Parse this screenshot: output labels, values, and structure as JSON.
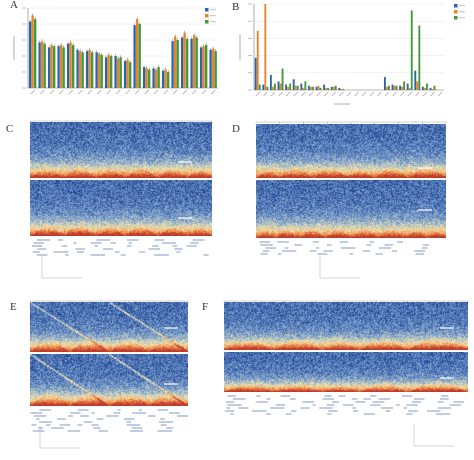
{
  "panels": {
    "A": {
      "label": "A"
    },
    "B": {
      "label": "B"
    },
    "C": {
      "label": "C"
    },
    "D": {
      "label": "D"
    },
    "E": {
      "label": "E"
    },
    "F": {
      "label": "F"
    }
  },
  "colors": {
    "series1": "#2e63a8",
    "series2": "#e8842a",
    "series3": "#3f9a3a",
    "hic_high": "#c0392b",
    "hic_mid": "#f3e7b0",
    "hic_low": "#1d3f8f"
  },
  "chart_data": [
    {
      "panel": "A",
      "type": "bar",
      "series": [
        {
          "name": "",
          "color": "#2e63a8",
          "values": [
            5.4,
            3.7,
            3.3,
            3.4,
            3.6,
            3.1,
            3.0,
            2.9,
            2.5,
            2.6,
            2.2,
            5.1,
            1.7,
            1.6,
            1.4,
            3.8,
            4.1,
            4.0,
            3.3,
            3.1
          ]
        },
        {
          "name": "",
          "color": "#e8842a",
          "values": [
            5.9,
            3.8,
            3.5,
            3.5,
            3.7,
            3.0,
            3.1,
            2.8,
            2.7,
            2.4,
            2.3,
            5.6,
            1.6,
            1.5,
            1.5,
            4.2,
            4.5,
            4.3,
            3.4,
            3.2
          ]
        },
        {
          "name": "",
          "color": "#3f9a3a",
          "values": [
            5.6,
            3.6,
            3.4,
            3.3,
            3.5,
            2.9,
            2.9,
            2.7,
            2.6,
            2.5,
            2.1,
            5.2,
            1.5,
            1.7,
            1.3,
            3.9,
            4.0,
            4.1,
            3.5,
            3.0
          ]
        }
      ],
      "ylim": [
        0,
        6.5
      ],
      "legend": "top-right"
    },
    {
      "panel": "B",
      "type": "bar",
      "series": [
        {
          "name": "",
          "color": "#2e63a8",
          "values": [
            30,
            5,
            14,
            8,
            5,
            10,
            6,
            4,
            3,
            5,
            3,
            2,
            0,
            0,
            0,
            0,
            0,
            12,
            5,
            4,
            6,
            18,
            3,
            2,
            0
          ]
        },
        {
          "name": "",
          "color": "#e8842a",
          "values": [
            55,
            80,
            3,
            6,
            3,
            4,
            2,
            3,
            4,
            2,
            3,
            1,
            0,
            0,
            0,
            0,
            0,
            3,
            4,
            3,
            2,
            8,
            2,
            1,
            0
          ]
        },
        {
          "name": "",
          "color": "#3f9a3a",
          "values": [
            5,
            3,
            6,
            20,
            6,
            4,
            8,
            3,
            2,
            2,
            4,
            1,
            0,
            0,
            0,
            0,
            0,
            4,
            4,
            8,
            74,
            60,
            6,
            4,
            0
          ]
        }
      ],
      "ylim": [
        0,
        80
      ],
      "legend": "top-right"
    }
  ]
}
